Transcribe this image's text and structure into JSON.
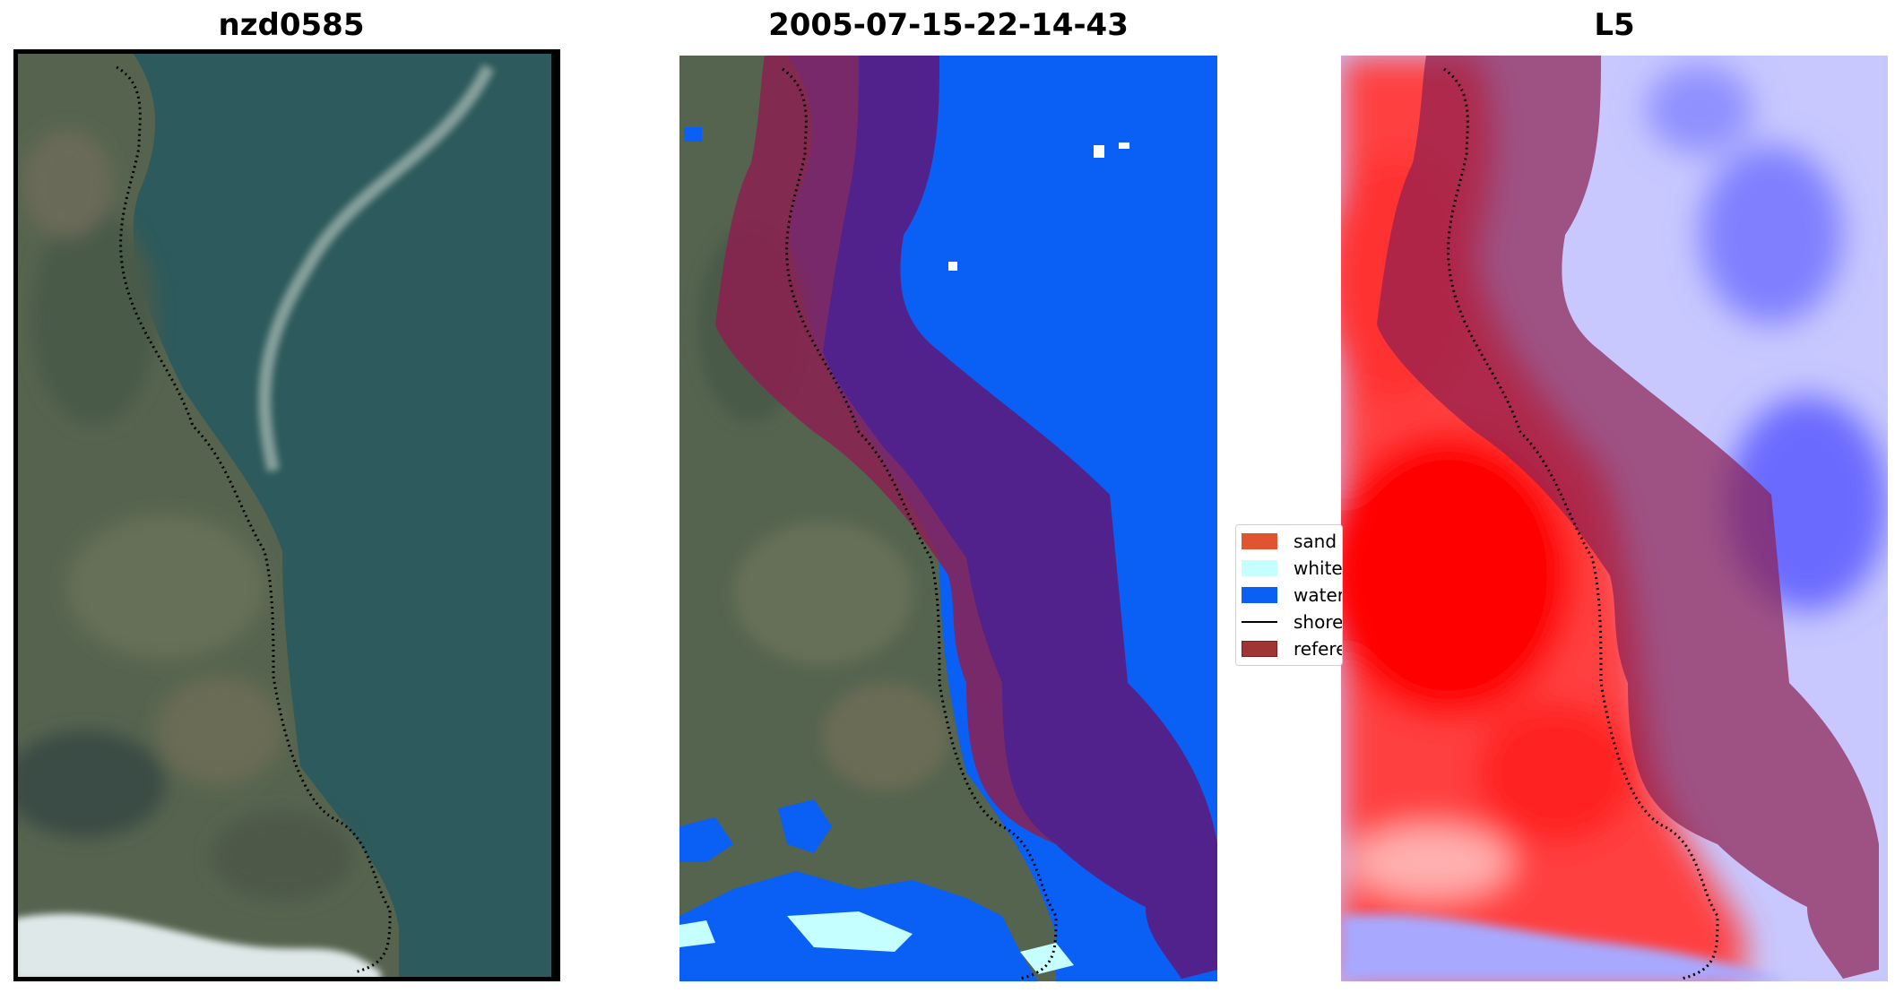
{
  "panels": [
    {
      "title": "nzd0585"
    },
    {
      "title": "2005-07-15-22-14-43"
    },
    {
      "title": "L5"
    }
  ],
  "legend": {
    "items": [
      {
        "label": "sand",
        "color": "#e05530",
        "kind": "patch"
      },
      {
        "label": "white",
        "color": "#c6ffff",
        "kind": "patch"
      },
      {
        "label": "water",
        "color": "#0a5ff5",
        "kind": "patch"
      },
      {
        "label": "shore",
        "color": "#000000",
        "kind": "line"
      },
      {
        "label": "refere",
        "color": "#a03535",
        "kind": "patch"
      }
    ]
  },
  "colors": {
    "land": "#4e5d4c",
    "water_rgb": "#2f5c5f",
    "water_class": "#0a5ff5",
    "buffer": "#8c2050",
    "buffer_over_water": "#4c2090",
    "index_positive": "#ff2020",
    "index_negative": "#3838ff"
  }
}
